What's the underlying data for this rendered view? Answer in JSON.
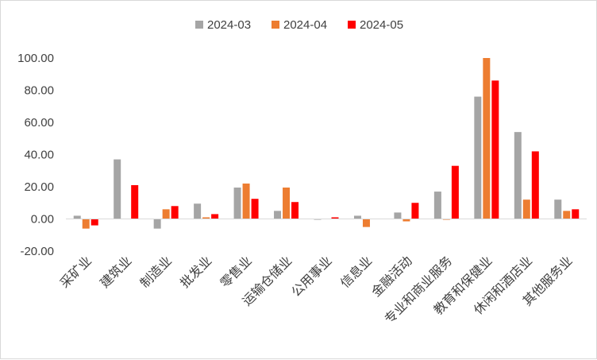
{
  "chart_data": {
    "type": "bar",
    "title": "",
    "xlabel": "",
    "ylabel": "",
    "ylim": [
      -20,
      100
    ],
    "yticks": [
      "-20.00",
      "0.00",
      "20.00",
      "40.00",
      "60.00",
      "80.00",
      "100.00"
    ],
    "grid": false,
    "legend_position": "top-center",
    "categories": [
      "采矿业",
      "建筑业",
      "制造业",
      "批发业",
      "零售业",
      "运输仓储业",
      "公用事业",
      "信息业",
      "金融活动",
      "专业和商业服务",
      "教育和保健业",
      "休闲和酒店业",
      "其他服务业"
    ],
    "series": [
      {
        "name": "2024-03",
        "color": "#a5a5a5",
        "values": [
          2,
          37,
          null,
          9.5,
          19.5,
          5,
          -0.5,
          2,
          4,
          17,
          76,
          54,
          12
        ]
      },
      {
        "name": "2024-04",
        "color": "#ed7d31",
        "values": [
          -6,
          null,
          6,
          1,
          22,
          19.5,
          null,
          -5,
          -1.5,
          -0.5,
          100,
          12,
          5
        ]
      },
      {
        "name": "2024-05",
        "color": "#ff0000",
        "values": [
          -4,
          21,
          8,
          3,
          12.5,
          10.5,
          1,
          null,
          10,
          33,
          86,
          42,
          6
        ]
      }
    ],
    "extra_note": "制造业 2024-03 value is about -6"
  }
}
